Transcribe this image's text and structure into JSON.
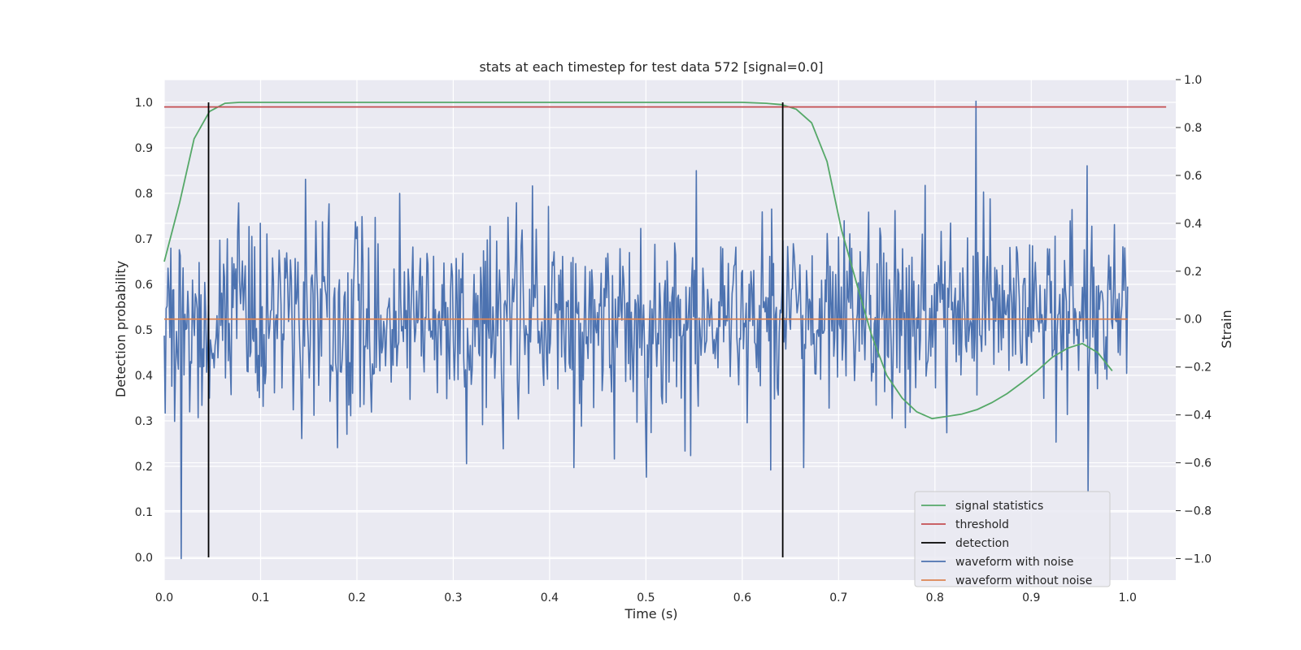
{
  "chart_data": {
    "type": "line",
    "title": "stats at each timestep for test data 572 [signal=0.0]",
    "xlabel": "Time (s)",
    "ylabel": "Detection probability",
    "y2label": "Strain",
    "xlim": [
      0.0,
      1.05
    ],
    "ylim": [
      -0.05,
      1.05
    ],
    "y2lim": [
      -1.09,
      1.0
    ],
    "x_ticks": [
      "0.0",
      "0.1",
      "0.2",
      "0.3",
      "0.4",
      "0.5",
      "0.6",
      "0.7",
      "0.8",
      "0.9",
      "1.0"
    ],
    "y_ticks": [
      "0.0",
      "0.1",
      "0.2",
      "0.3",
      "0.4",
      "0.5",
      "0.6",
      "0.7",
      "0.8",
      "0.9",
      "1.0"
    ],
    "y2_ticks": [
      "−1.0",
      "−0.8",
      "−0.6",
      "−0.4",
      "−0.2",
      "0.0",
      "0.2",
      "0.4",
      "0.6",
      "0.8",
      "1.0"
    ],
    "grid": true,
    "legend_position": "bottom-right",
    "colors": {
      "signal_statistics": "#55a868",
      "threshold": "#c44e52",
      "detection": "#000000",
      "waveform_with_noise": "#4c72b0",
      "waveform_without_noise": "#dd8452",
      "plot_background": "#eaeaf2",
      "grid": "#ffffff"
    },
    "series": [
      {
        "name": "signal statistics",
        "axis": "left",
        "x": [
          0.0,
          0.016,
          0.031,
          0.047,
          0.063,
          0.078,
          0.1,
          0.2,
          0.3,
          0.4,
          0.5,
          0.6,
          0.625,
          0.641,
          0.656,
          0.672,
          0.688,
          0.703,
          0.719,
          0.734,
          0.75,
          0.766,
          0.781,
          0.797,
          0.813,
          0.828,
          0.844,
          0.859,
          0.875,
          0.891,
          0.906,
          0.922,
          0.938,
          0.953,
          0.969,
          0.984
        ],
        "y": [
          0.65,
          0.78,
          0.92,
          0.98,
          0.998,
          1.0,
          1.0,
          1.0,
          1.0,
          1.0,
          1.0,
          1.0,
          0.998,
          0.995,
          0.985,
          0.955,
          0.87,
          0.72,
          0.6,
          0.49,
          0.4,
          0.35,
          0.32,
          0.305,
          0.31,
          0.315,
          0.325,
          0.34,
          0.36,
          0.385,
          0.41,
          0.44,
          0.46,
          0.47,
          0.45,
          0.41
        ]
      },
      {
        "name": "threshold",
        "axis": "left",
        "x": [
          0.0,
          1.04
        ],
        "y": [
          0.99,
          0.99
        ]
      },
      {
        "name": "detection",
        "axis": "left",
        "type": "vlines",
        "x": [
          0.046,
          0.642
        ],
        "ymin": 0.0,
        "ymax": 1.0
      },
      {
        "name": "waveform with noise",
        "axis": "right",
        "x_range": [
          0.0,
          1.0
        ],
        "spikes": [
          {
            "x": 0.018,
            "y": -1.0
          },
          {
            "x": 0.047,
            "y": -0.33
          },
          {
            "x": 0.5,
            "y": -0.66
          },
          {
            "x": 0.63,
            "y": -0.63
          },
          {
            "x": 0.843,
            "y": 0.91
          },
          {
            "x": 0.958,
            "y": 0.64
          },
          {
            "x": 0.958,
            "y": -0.72
          }
        ]
      },
      {
        "name": "waveform without noise",
        "axis": "right",
        "x": [
          0.0,
          1.0
        ],
        "y": [
          0.0,
          0.0
        ]
      }
    ]
  }
}
